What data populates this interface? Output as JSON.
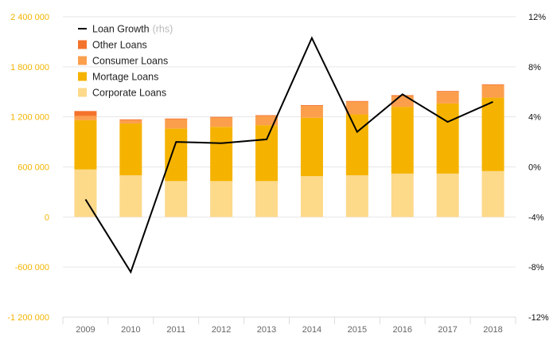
{
  "chart_data": {
    "type": "bar",
    "categories": [
      "2009",
      "2010",
      "2011",
      "2012",
      "2013",
      "2014",
      "2015",
      "2016",
      "2017",
      "2018"
    ],
    "series": [
      {
        "name": "Corporate Loans",
        "kind": "bar",
        "color": "#fdd98a",
        "values": [
          570000,
          500000,
          430000,
          430000,
          430000,
          490000,
          500000,
          520000,
          520000,
          550000
        ]
      },
      {
        "name": "Mortage Loans",
        "kind": "bar",
        "color": "#f5b300",
        "values": [
          590000,
          620000,
          630000,
          650000,
          670000,
          700000,
          730000,
          800000,
          840000,
          880000
        ]
      },
      {
        "name": "Consumer Loans",
        "kind": "bar",
        "color": "#fb9f4d",
        "values": [
          50000,
          40000,
          110000,
          110000,
          110000,
          140000,
          150000,
          130000,
          140000,
          150000
        ]
      },
      {
        "name": "Other Loans",
        "kind": "bar",
        "color": "#f4732c",
        "values": [
          60000,
          10000,
          10000,
          10000,
          10000,
          10000,
          10000,
          10000,
          10000,
          10000
        ]
      },
      {
        "name": "Loan Growth",
        "kind": "line",
        "axis": "right",
        "color": "#000000",
        "values": [
          -2.6,
          -8.4,
          2.0,
          1.9,
          2.2,
          10.3,
          2.8,
          5.8,
          3.6,
          5.2
        ]
      }
    ],
    "legend": {
      "placement": "top-left",
      "items": [
        {
          "label": "Loan Growth",
          "suffix": "(rhs)",
          "type": "line",
          "color": "#000000"
        },
        {
          "label": "Other Loans",
          "type": "box",
          "color": "#f4732c"
        },
        {
          "label": "Consumer Loans",
          "type": "box",
          "color": "#fb9f4d"
        },
        {
          "label": "Mortage Loans",
          "type": "box",
          "color": "#f5b300"
        },
        {
          "label": "Corporate Loans",
          "type": "box",
          "color": "#fdd98a"
        }
      ]
    },
    "y_left": {
      "range": [
        -1200000,
        2400000
      ],
      "ticks": [
        2400000,
        1800000,
        1200000,
        600000,
        0,
        -600000,
        -1200000
      ],
      "tick_labels": [
        "2 400 000",
        "1 800 000",
        "1 200 000",
        "600 000",
        "0",
        "-600 000",
        "-1 200 000"
      ],
      "color": "#f3b400"
    },
    "y_right": {
      "range": [
        -12,
        12
      ],
      "ticks": [
        12,
        8,
        4,
        0,
        -4,
        -8,
        -12
      ],
      "tick_labels": [
        "12%",
        "8%",
        "4%",
        "0%",
        "-4%",
        "-8%",
        "-12%"
      ],
      "color": "#111111"
    },
    "grid": true
  }
}
